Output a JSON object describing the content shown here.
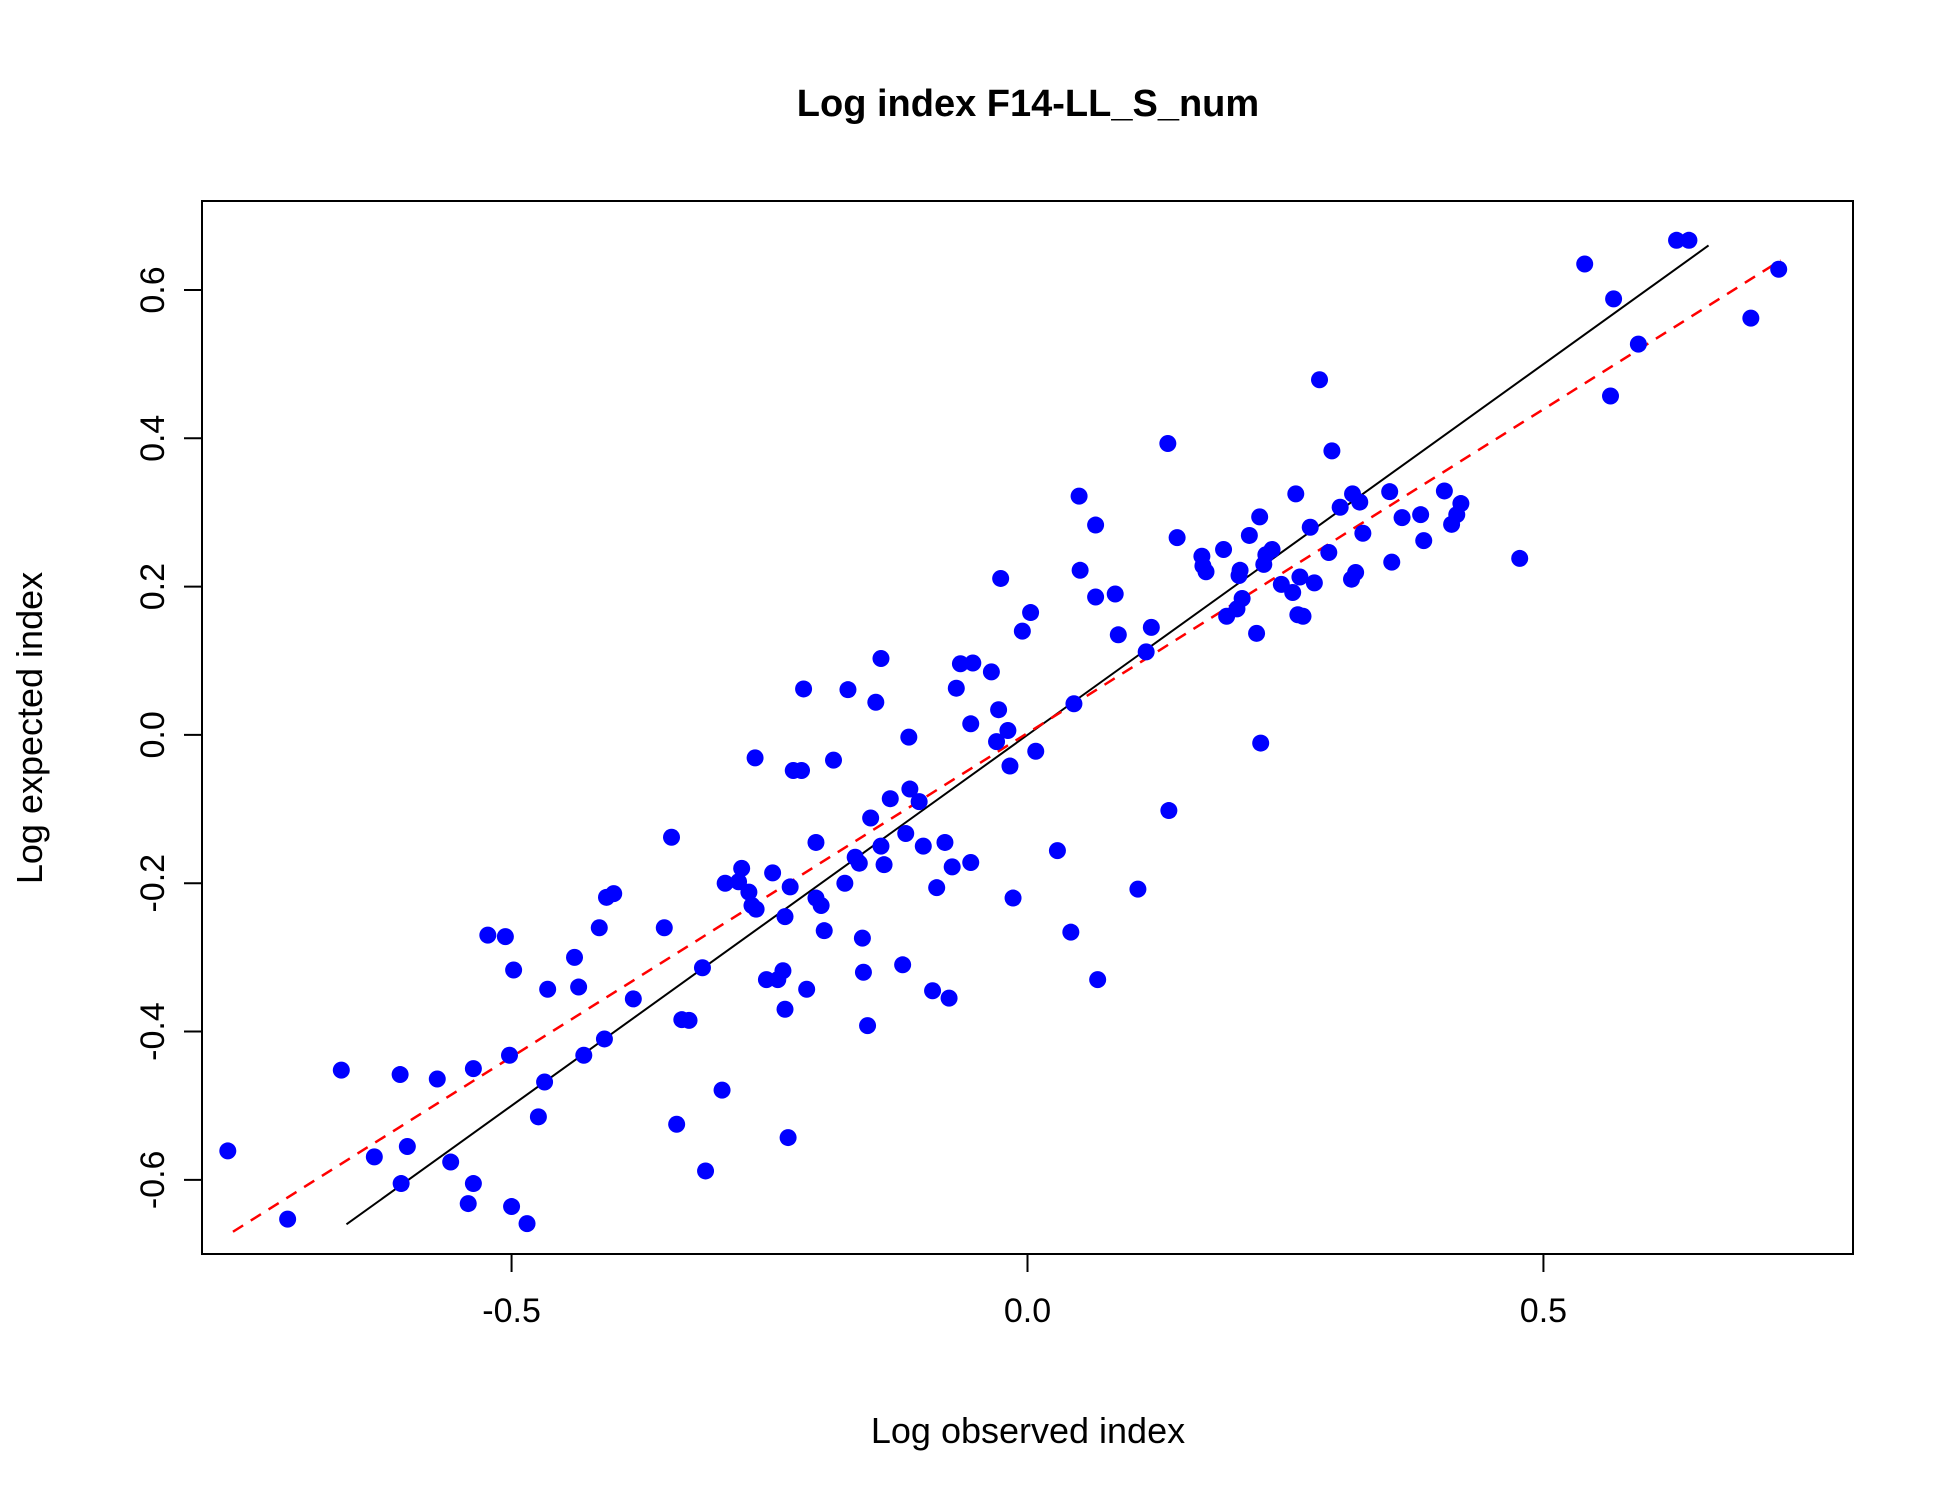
{
  "chart_data": {
    "type": "scatter",
    "title": "Log index F14-LL_S_num",
    "xlabel": "Log observed index",
    "ylabel": "Log expected index",
    "xlim": [
      -0.8,
      0.8
    ],
    "ylim": [
      -0.7,
      0.72
    ],
    "x_ticks": [
      -0.5,
      0.0,
      0.5
    ],
    "x_tick_labels": [
      "-0.5",
      "0.0",
      "0.5"
    ],
    "y_ticks": [
      -0.6,
      -0.4,
      -0.2,
      0.0,
      0.2,
      0.4,
      0.6
    ],
    "y_tick_labels": [
      "-0.6",
      "-0.4",
      "-0.2",
      "0.0",
      "0.2",
      "0.4",
      "0.6"
    ],
    "grid": false,
    "point_color": "#0000ff",
    "identity_line": {
      "x": [
        -0.66,
        0.66
      ],
      "y": [
        -0.66,
        0.66
      ],
      "color": "#000000"
    },
    "fit_line": {
      "x": [
        -0.77,
        0.73
      ],
      "y": [
        -0.67,
        0.64
      ],
      "color": "#ff0000",
      "style": "dashed"
    },
    "points": [
      [
        -0.775,
        -0.561
      ],
      [
        -0.717,
        -0.653
      ],
      [
        -0.665,
        -0.452
      ],
      [
        -0.633,
        -0.569
      ],
      [
        -0.607,
        -0.605
      ],
      [
        -0.601,
        -0.555
      ],
      [
        -0.608,
        -0.458
      ],
      [
        -0.572,
        -0.464
      ],
      [
        -0.559,
        -0.576
      ],
      [
        -0.542,
        -0.632
      ],
      [
        -0.537,
        -0.605
      ],
      [
        -0.537,
        -0.45
      ],
      [
        -0.523,
        -0.27
      ],
      [
        -0.506,
        -0.272
      ],
      [
        -0.502,
        -0.432
      ],
      [
        -0.5,
        -0.636
      ],
      [
        -0.498,
        -0.317
      ],
      [
        -0.485,
        -0.659
      ],
      [
        -0.474,
        -0.515
      ],
      [
        -0.468,
        -0.468
      ],
      [
        -0.465,
        -0.343
      ],
      [
        -0.439,
        -0.3
      ],
      [
        -0.435,
        -0.34
      ],
      [
        -0.43,
        -0.432
      ],
      [
        -0.415,
        -0.26
      ],
      [
        -0.41,
        -0.41
      ],
      [
        -0.408,
        -0.219
      ],
      [
        -0.401,
        -0.214
      ],
      [
        -0.382,
        -0.356
      ],
      [
        -0.352,
        -0.26
      ],
      [
        -0.345,
        -0.138
      ],
      [
        -0.34,
        -0.525
      ],
      [
        -0.335,
        -0.384
      ],
      [
        -0.328,
        -0.385
      ],
      [
        -0.315,
        -0.314
      ],
      [
        -0.312,
        -0.588
      ],
      [
        -0.296,
        -0.479
      ],
      [
        -0.293,
        -0.2
      ],
      [
        -0.28,
        -0.198
      ],
      [
        -0.277,
        -0.18
      ],
      [
        -0.27,
        -0.212
      ],
      [
        -0.267,
        -0.23
      ],
      [
        -0.264,
        -0.031
      ],
      [
        -0.263,
        -0.235
      ],
      [
        -0.253,
        -0.33
      ],
      [
        -0.247,
        -0.186
      ],
      [
        -0.242,
        -0.33
      ],
      [
        -0.237,
        -0.318
      ],
      [
        -0.235,
        -0.245
      ],
      [
        -0.235,
        -0.37
      ],
      [
        -0.232,
        -0.543
      ],
      [
        -0.23,
        -0.205
      ],
      [
        -0.227,
        -0.048
      ],
      [
        -0.219,
        -0.048
      ],
      [
        -0.217,
        0.062
      ],
      [
        -0.214,
        -0.343
      ],
      [
        -0.205,
        -0.145
      ],
      [
        -0.205,
        -0.22
      ],
      [
        -0.2,
        -0.23
      ],
      [
        -0.197,
        -0.264
      ],
      [
        -0.188,
        -0.034
      ],
      [
        -0.177,
        -0.2
      ],
      [
        -0.174,
        0.061
      ],
      [
        -0.167,
        -0.165
      ],
      [
        -0.163,
        -0.173
      ],
      [
        -0.16,
        -0.274
      ],
      [
        -0.159,
        -0.32
      ],
      [
        -0.155,
        -0.392
      ],
      [
        -0.152,
        -0.112
      ],
      [
        -0.147,
        0.044
      ],
      [
        -0.142,
        0.103
      ],
      [
        -0.142,
        -0.15
      ],
      [
        -0.139,
        -0.175
      ],
      [
        -0.133,
        -0.086
      ],
      [
        -0.121,
        -0.31
      ],
      [
        -0.118,
        -0.133
      ],
      [
        -0.115,
        -0.003
      ],
      [
        -0.114,
        -0.073
      ],
      [
        -0.105,
        -0.09
      ],
      [
        -0.101,
        -0.15
      ],
      [
        -0.092,
        -0.345
      ],
      [
        -0.088,
        -0.206
      ],
      [
        -0.08,
        -0.145
      ],
      [
        -0.076,
        -0.355
      ],
      [
        -0.073,
        -0.178
      ],
      [
        -0.069,
        0.063
      ],
      [
        -0.065,
        0.096
      ],
      [
        -0.055,
        -0.172
      ],
      [
        -0.055,
        0.015
      ],
      [
        -0.053,
        0.097
      ],
      [
        -0.035,
        0.085
      ],
      [
        -0.03,
        -0.009
      ],
      [
        -0.028,
        0.034
      ],
      [
        -0.026,
        0.211
      ],
      [
        -0.019,
        0.006
      ],
      [
        -0.017,
        -0.042
      ],
      [
        -0.014,
        -0.22
      ],
      [
        -0.005,
        0.14
      ],
      [
        0.003,
        0.165
      ],
      [
        0.008,
        -0.022
      ],
      [
        0.029,
        -0.156
      ],
      [
        0.042,
        -0.266
      ],
      [
        0.045,
        0.042
      ],
      [
        0.05,
        0.322
      ],
      [
        0.051,
        0.222
      ],
      [
        0.066,
        0.186
      ],
      [
        0.066,
        0.283
      ],
      [
        0.068,
        -0.33
      ],
      [
        0.085,
        0.19
      ],
      [
        0.088,
        0.135
      ],
      [
        0.107,
        -0.208
      ],
      [
        0.115,
        0.112
      ],
      [
        0.12,
        0.145
      ],
      [
        0.136,
        0.393
      ],
      [
        0.137,
        -0.102
      ],
      [
        0.145,
        0.266
      ],
      [
        0.169,
        0.241
      ],
      [
        0.17,
        0.228
      ],
      [
        0.173,
        0.22
      ],
      [
        0.19,
        0.25
      ],
      [
        0.193,
        0.16
      ],
      [
        0.203,
        0.17
      ],
      [
        0.205,
        0.215
      ],
      [
        0.206,
        0.222
      ],
      [
        0.208,
        0.184
      ],
      [
        0.215,
        0.269
      ],
      [
        0.222,
        0.137
      ],
      [
        0.225,
        0.294
      ],
      [
        0.226,
        -0.011
      ],
      [
        0.229,
        0.23
      ],
      [
        0.231,
        0.243
      ],
      [
        0.237,
        0.25
      ],
      [
        0.246,
        0.203
      ],
      [
        0.257,
        0.192
      ],
      [
        0.26,
        0.325
      ],
      [
        0.262,
        0.162
      ],
      [
        0.264,
        0.213
      ],
      [
        0.267,
        0.16
      ],
      [
        0.274,
        0.28
      ],
      [
        0.278,
        0.205
      ],
      [
        0.283,
        0.479
      ],
      [
        0.292,
        0.246
      ],
      [
        0.295,
        0.383
      ],
      [
        0.303,
        0.307
      ],
      [
        0.314,
        0.21
      ],
      [
        0.315,
        0.325
      ],
      [
        0.318,
        0.219
      ],
      [
        0.322,
        0.314
      ],
      [
        0.325,
        0.272
      ],
      [
        0.351,
        0.328
      ],
      [
        0.353,
        0.233
      ],
      [
        0.363,
        0.293
      ],
      [
        0.381,
        0.297
      ],
      [
        0.384,
        0.262
      ],
      [
        0.404,
        0.329
      ],
      [
        0.411,
        0.284
      ],
      [
        0.416,
        0.297
      ],
      [
        0.42,
        0.312
      ],
      [
        0.477,
        0.238
      ],
      [
        0.54,
        0.635
      ],
      [
        0.565,
        0.457
      ],
      [
        0.568,
        0.588
      ],
      [
        0.592,
        0.527
      ],
      [
        0.629,
        0.667
      ],
      [
        0.641,
        0.667
      ],
      [
        0.701,
        0.562
      ],
      [
        0.728,
        0.628
      ]
    ]
  }
}
